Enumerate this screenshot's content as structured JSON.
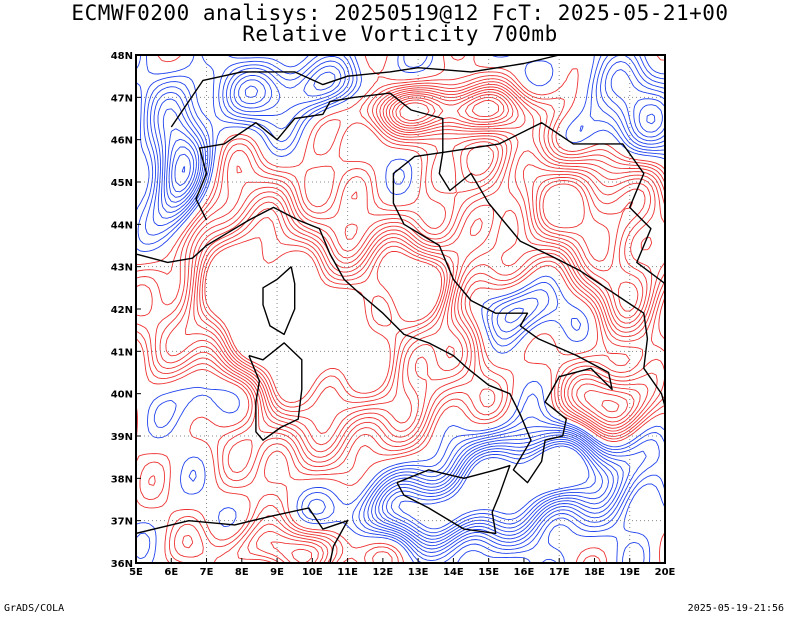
{
  "title": {
    "line1": "ECMWF0200 analisys: 20250519@12 FcT: 2025-05-21+00",
    "line2": "Relative Vorticity 700mb"
  },
  "map": {
    "lon_labels": [
      "5E",
      "6E",
      "7E",
      "8E",
      "9E",
      "10E",
      "11E",
      "12E",
      "13E",
      "14E",
      "15E",
      "16E",
      "17E",
      "18E",
      "19E",
      "20E"
    ],
    "lat_labels": [
      "36N",
      "37N",
      "38N",
      "39N",
      "40N",
      "41N",
      "42N",
      "43N",
      "44N",
      "45N",
      "46N",
      "47N",
      "48N"
    ],
    "lon_range": [
      5,
      20
    ],
    "lat_range": [
      36,
      48
    ],
    "positive_color": "#ee3333",
    "negative_color": "#2244ee",
    "coast_color": "#000000",
    "grid_style": "dotted"
  },
  "footer": {
    "left": "GrADS/COLA",
    "right": "2025-05-19-21:56"
  }
}
